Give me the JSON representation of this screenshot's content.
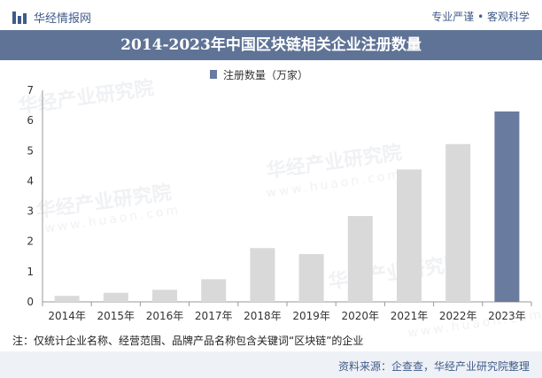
{
  "header": {
    "brand": "华经情报网",
    "slogan": "专业严谨 • 客观科学"
  },
  "watermark": {
    "text": "华经产业研究院",
    "url": "www.huaon.com"
  },
  "chart_data": {
    "type": "bar",
    "title": "2014-2023年中国区块链相关企业注册数量",
    "categories": [
      "2014年",
      "2015年",
      "2016年",
      "2017年",
      "2018年",
      "2019年",
      "2020年",
      "2021年",
      "2022年",
      "2023年"
    ],
    "series": [
      {
        "name": "注册数量（万家）",
        "values": [
          0.2,
          0.3,
          0.4,
          0.75,
          1.78,
          1.58,
          2.84,
          4.38,
          5.22,
          6.3
        ]
      }
    ],
    "highlight_index": 9,
    "ylim": [
      0,
      7
    ],
    "yticks": [
      0,
      1,
      2,
      3,
      4,
      5,
      6,
      7
    ],
    "grid": false,
    "legend": "top-center",
    "colors": {
      "bar": "#d9d9d9",
      "highlight": "#6a7ba0",
      "legend_marker": "#6a7ba0"
    }
  },
  "footnote": "注：仅统计企业名称、经营范围、品牌产品名称包含关键词“区块链”的企业",
  "source": "资料来源：企查查，华经产业研究院整理"
}
